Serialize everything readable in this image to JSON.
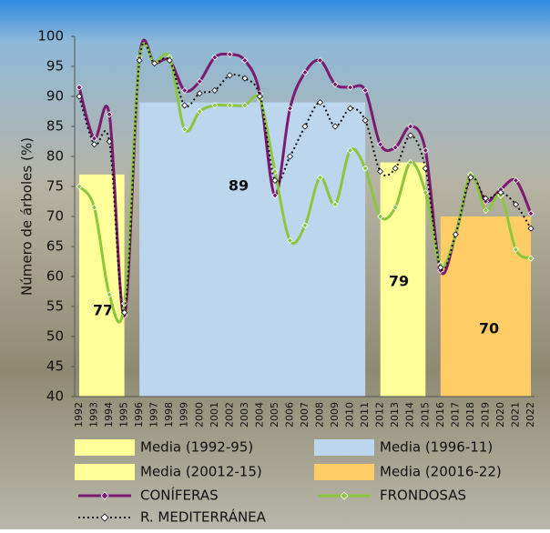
{
  "chart_data": {
    "type": "line",
    "y_label": "Número de árboles (%)",
    "categories": [
      "1992",
      "1993",
      "1994",
      "1995",
      "1996",
      "1997",
      "1998",
      "1999",
      "2000",
      "2001",
      "2002",
      "2003",
      "2004",
      "2005",
      "2006",
      "2007",
      "2008",
      "2009",
      "2010",
      "2011",
      "2012",
      "2013",
      "2014",
      "2015",
      "2016",
      "2017",
      "2018",
      "2019",
      "2020",
      "2021",
      "2022"
    ],
    "ylim": [
      40,
      100
    ],
    "yticks": [
      40,
      45,
      50,
      55,
      60,
      65,
      70,
      75,
      80,
      85,
      90,
      95,
      100
    ],
    "bands": [
      {
        "name": "Media (1992-95)",
        "value": 77,
        "color": "#ffff99",
        "start": "1992",
        "end": "1995"
      },
      {
        "name": "Media (1996-11)",
        "value": 89,
        "color": "#bcd6ee",
        "start": "1996",
        "end": "2011"
      },
      {
        "name": "Media (20012-15)",
        "value": 79,
        "color": "#ffff99",
        "start": "2012",
        "end": "2015"
      },
      {
        "name": "Media (20016-22)",
        "value": 70,
        "color": "#ffcc66",
        "start": "2016",
        "end": "2022"
      }
    ],
    "series": [
      {
        "name": "CONÍFERAS",
        "color": "#7b1a6e",
        "style": "solid",
        "values": [
          91.5,
          83,
          87,
          53.5,
          96.5,
          95.5,
          96,
          91,
          92.5,
          96.5,
          97,
          96,
          90.5,
          73.5,
          88,
          94,
          96,
          92,
          91.5,
          91,
          82,
          81.5,
          85,
          81,
          61,
          67,
          76.5,
          72.5,
          74.5,
          76,
          70.5
        ]
      },
      {
        "name": "FRONDOSAS",
        "color": "#8cc63f",
        "style": "solid",
        "values": [
          75,
          71.5,
          57,
          55.5,
          96,
          95.5,
          96.5,
          84.5,
          87.5,
          88.5,
          88.5,
          88.5,
          89.5,
          77.5,
          66,
          68.5,
          76.5,
          72,
          81,
          78,
          70,
          71.5,
          79,
          74,
          62,
          67,
          77,
          71,
          73.5,
          64.5,
          63
        ]
      },
      {
        "name": "R. MEDITERRÁNEA",
        "color": "#111111",
        "style": "dotted",
        "values": [
          90,
          82,
          82.5,
          54,
          96,
          95.5,
          96,
          88.5,
          90.5,
          91,
          93.5,
          93,
          90,
          76,
          80,
          85,
          89,
          85,
          88,
          86,
          77.5,
          78,
          83.5,
          78,
          61.5,
          67,
          76.5,
          73,
          74,
          72,
          68
        ]
      }
    ]
  }
}
